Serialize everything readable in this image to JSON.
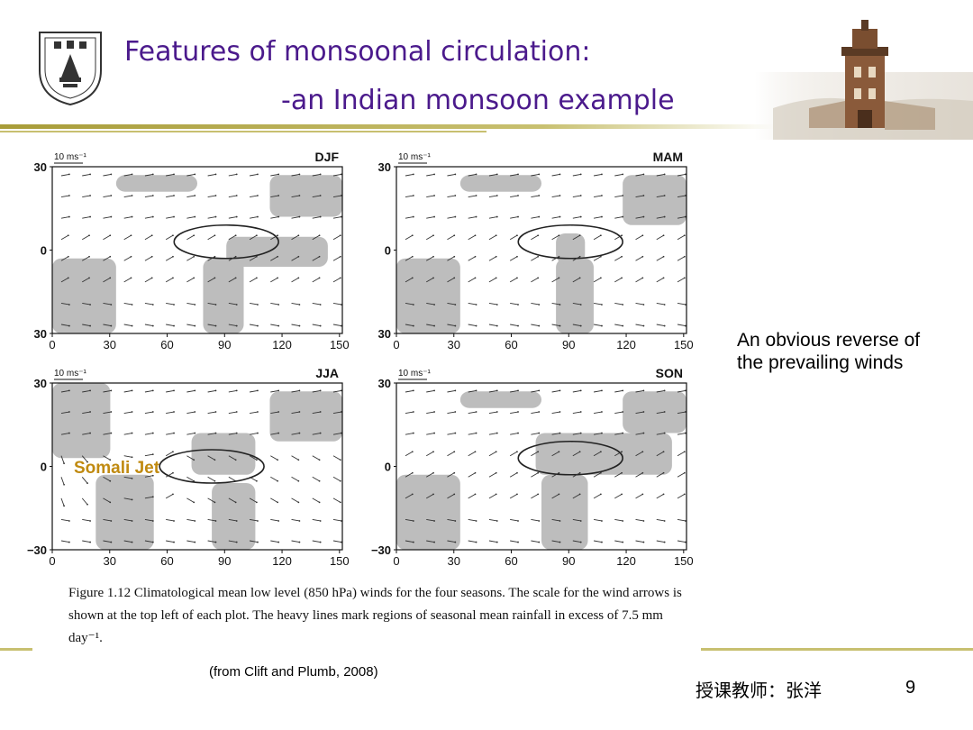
{
  "slide": {
    "title_line1": "Features of monsoonal circulation:",
    "title_line2": "-an Indian monsoon example",
    "side_note": "An obvious reverse of the prevailing winds",
    "caption": "Figure 1.12  Climatological mean low level (850 hPa) winds for the four seasons. The scale for the wind arrows is shown at the top left of each plot. The heavy lines mark regions of seasonal mean rainfall in excess of 7.5 mm day⁻¹.",
    "source": "(from Clift and Plumb, 2008)",
    "footer_text": "授课教师：张洋",
    "page_number": "9",
    "annotation": "Somali Jet"
  },
  "figure": {
    "scale_label": "10 ms⁻¹",
    "x_ticks": [
      "0",
      "30",
      "60",
      "90",
      "120",
      "150"
    ],
    "y_labels": [
      "30",
      "0",
      "30"
    ],
    "y_labels_bottom": [
      "30",
      "0",
      "−30"
    ],
    "panels": [
      {
        "season": "DJF"
      },
      {
        "season": "MAM"
      },
      {
        "season": "JJA"
      },
      {
        "season": "SON"
      }
    ]
  },
  "colors": {
    "title": "#4b1a8c",
    "accent_bar": "#c8c070",
    "land": "#bdbdbd",
    "annotation": "#c08a10"
  }
}
